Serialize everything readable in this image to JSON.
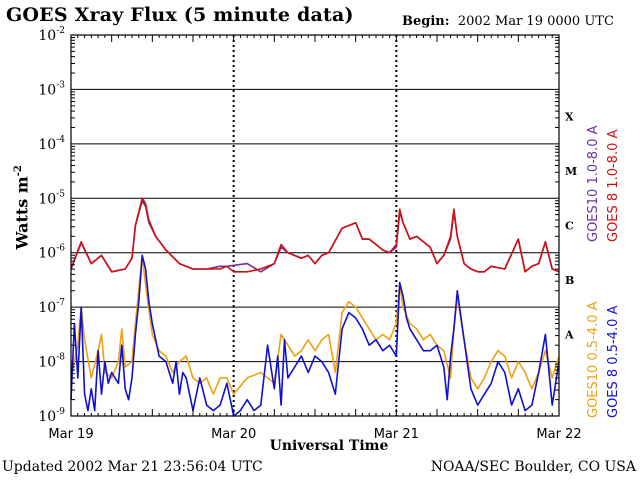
{
  "header": {
    "title": "GOES Xray Flux (5 minute data)",
    "begin_label": "Begin:",
    "begin_value": "2002 Mar 19 0000 UTC"
  },
  "footer": {
    "updated": "Updated 2002 Mar 21 23:56:04 UTC",
    "credit": "NOAA/SEC Boulder, CO USA"
  },
  "colors": {
    "goes10_long": "#7030a0",
    "goes8_long": "#d01010",
    "goes10_short": "#f0a010",
    "goes8_short": "#1010d0"
  },
  "chart_data": {
    "type": "line",
    "title": "GOES Xray Flux (5 minute data)",
    "xlabel": "Universal Time",
    "ylabel": "Watts m-2",
    "ylabel_main": "Watts m",
    "ylabel_sup": "-2",
    "y_scale": "log",
    "ylim": [
      1e-09,
      0.01
    ],
    "xlim": [
      0,
      72
    ],
    "x_unit": "hours since 2002 Mar 19 0000 UTC",
    "x_ticks": [
      {
        "x": 0,
        "label": "Mar 19"
      },
      {
        "x": 24,
        "label": "Mar 20"
      },
      {
        "x": 48,
        "label": "Mar 21"
      },
      {
        "x": 72,
        "label": "Mar 22"
      }
    ],
    "y_ticks": [
      {
        "exp": -2,
        "base": "10",
        "sup": "-2"
      },
      {
        "exp": -3,
        "base": "10",
        "sup": "-3"
      },
      {
        "exp": -4,
        "base": "10",
        "sup": "-4"
      },
      {
        "exp": -5,
        "base": "10",
        "sup": "-5"
      },
      {
        "exp": -6,
        "base": "10",
        "sup": "-6"
      },
      {
        "exp": -7,
        "base": "10",
        "sup": "-7"
      },
      {
        "exp": -8,
        "base": "10",
        "sup": "-8"
      },
      {
        "exp": -9,
        "base": "10",
        "sup": "-9"
      }
    ],
    "flare_classes": [
      {
        "label": "X",
        "exp": -3.5
      },
      {
        "label": "M",
        "exp": -4.5
      },
      {
        "label": "C",
        "exp": -5.5
      },
      {
        "label": "B",
        "exp": -6.5
      },
      {
        "label": "A",
        "exp": -7.5
      }
    ],
    "grid": "horizontal lines at each decade; dotted day separators",
    "legend_position": "right, vertical",
    "series": [
      {
        "name": "GOES10 1.0-8.0 A",
        "color": "#7030a0",
        "x": [
          0,
          1.5,
          3,
          4.5,
          6,
          8,
          9,
          9.5,
          10.5,
          11,
          11.5,
          12.5,
          14,
          16,
          18,
          20,
          22,
          23,
          26,
          28,
          30,
          31,
          32,
          34,
          35,
          36,
          37,
          38,
          40,
          42,
          43,
          44,
          45,
          46,
          47,
          48,
          48.5,
          49,
          50,
          51,
          52,
          53,
          54,
          55,
          56,
          56.5,
          57,
          58,
          59,
          60,
          61,
          62,
          64,
          66,
          67,
          68,
          69,
          70,
          71,
          72
        ],
        "y": [
          -6.3,
          -5.82,
          -6.2,
          -6.05,
          -6.35,
          -6.3,
          -6.1,
          -5.5,
          -5.05,
          -5.15,
          -5.45,
          -5.7,
          -5.95,
          -6.2,
          -6.3,
          -6.3,
          -6.25,
          -6.25,
          -6.2,
          -6.35,
          -6.2,
          -5.9,
          -6.0,
          -6.1,
          -6.05,
          -6.2,
          -6.05,
          -6.0,
          -5.55,
          -5.45,
          -5.75,
          -5.75,
          -5.85,
          -5.95,
          -6.0,
          -5.9,
          -5.25,
          -5.45,
          -5.75,
          -5.7,
          -5.8,
          -5.9,
          -6.2,
          -6.05,
          -5.75,
          -5.25,
          -5.7,
          -6.2,
          -6.3,
          -6.35,
          -6.35,
          -6.25,
          -6.3,
          -5.75,
          -6.35,
          -6.25,
          -6.2,
          -5.8,
          -6.3,
          -6.35
        ]
      },
      {
        "name": "GOES 8 1.0-8.0 A",
        "color": "#d01010",
        "x": [
          0,
          1.5,
          3,
          4.5,
          6,
          8,
          9,
          9.5,
          10.5,
          11,
          11.5,
          12.5,
          14,
          16,
          18,
          20,
          22,
          23,
          24,
          26,
          28,
          30,
          31,
          32,
          34,
          35,
          36,
          37,
          38,
          40,
          42,
          43,
          44,
          45,
          46,
          47,
          48,
          48.5,
          49,
          50,
          51,
          52,
          53,
          54,
          55,
          56,
          56.5,
          57,
          58,
          59,
          60,
          61,
          62,
          64,
          66,
          67,
          68,
          69,
          70,
          71,
          72
        ],
        "y": [
          -6.3,
          -5.8,
          -6.2,
          -6.05,
          -6.35,
          -6.3,
          -6.1,
          -5.5,
          -5.0,
          -5.1,
          -5.4,
          -5.7,
          -5.95,
          -6.2,
          -6.3,
          -6.3,
          -6.3,
          -6.25,
          -6.35,
          -6.35,
          -6.3,
          -6.2,
          -5.85,
          -6.0,
          -6.1,
          -6.05,
          -6.2,
          -6.05,
          -6.0,
          -5.55,
          -5.45,
          -5.75,
          -5.75,
          -5.85,
          -5.95,
          -6.0,
          -5.85,
          -5.2,
          -5.45,
          -5.75,
          -5.7,
          -5.8,
          -5.9,
          -6.2,
          -6.05,
          -5.7,
          -5.2,
          -5.7,
          -6.2,
          -6.3,
          -6.35,
          -6.35,
          -6.25,
          -6.3,
          -5.75,
          -6.35,
          -6.25,
          -6.2,
          -5.8,
          -6.3,
          -6.35
        ]
      },
      {
        "name": "GOES10 0.5-4.0 A",
        "color": "#f0a010",
        "x": [
          0,
          1,
          1.5,
          2,
          3,
          4,
          4.5,
          5,
          6,
          7,
          7.5,
          8,
          9,
          9.5,
          10.5,
          11,
          12,
          13,
          14,
          15,
          16,
          17,
          18,
          19,
          20,
          21,
          22,
          23,
          24,
          26,
          28,
          30,
          31,
          32,
          33,
          34,
          35,
          36,
          37,
          38,
          39,
          40,
          41,
          42,
          43,
          44,
          45,
          46,
          47,
          48,
          48.5,
          49,
          50,
          51,
          52,
          53,
          54,
          55,
          56,
          56.5,
          57,
          58,
          59,
          60,
          61,
          62,
          63,
          64,
          65,
          66,
          67,
          68,
          69,
          70,
          71,
          72
        ],
        "y": [
          -8.3,
          -7.7,
          -7.0,
          -7.6,
          -8.3,
          -7.8,
          -7.5,
          -8.2,
          -8.3,
          -8.0,
          -7.4,
          -8.1,
          -8.0,
          -7.3,
          -6.05,
          -6.6,
          -7.5,
          -7.8,
          -7.9,
          -8.2,
          -8.0,
          -7.9,
          -8.3,
          -8.4,
          -8.3,
          -8.6,
          -8.3,
          -8.3,
          -8.6,
          -8.3,
          -8.2,
          -8.4,
          -7.5,
          -7.7,
          -7.9,
          -7.8,
          -7.6,
          -7.8,
          -7.6,
          -7.5,
          -8.2,
          -7.1,
          -6.9,
          -7.0,
          -7.2,
          -7.4,
          -7.6,
          -7.5,
          -7.6,
          -7.3,
          -6.6,
          -7.0,
          -7.3,
          -7.4,
          -7.6,
          -7.5,
          -7.7,
          -7.8,
          -8.3,
          -7.4,
          -6.8,
          -7.6,
          -8.3,
          -8.5,
          -8.3,
          -8.0,
          -7.8,
          -7.9,
          -8.3,
          -8.0,
          -8.2,
          -8.5,
          -8.2,
          -7.8,
          -8.3,
          -7.9
        ]
      },
      {
        "name": "GOES 8 0.5-4.0 A",
        "color": "#1010d0",
        "x": [
          0,
          0.5,
          1,
          1.5,
          2,
          2.5,
          3,
          3.5,
          4,
          4.5,
          5,
          5.5,
          6,
          7,
          7.5,
          8,
          8.5,
          9,
          9.5,
          10,
          10.5,
          11,
          11.5,
          12,
          13,
          14,
          15,
          15.5,
          16,
          16.5,
          17,
          18,
          19,
          20,
          21,
          22,
          23,
          24,
          25,
          26,
          27,
          28,
          29,
          30,
          30.5,
          31,
          31.5,
          32,
          33,
          34,
          35,
          36,
          37,
          38,
          39,
          40,
          41,
          42,
          43,
          44,
          45,
          46,
          47,
          48,
          48.5,
          49,
          49.5,
          50,
          51,
          52,
          53,
          54,
          55,
          55.5,
          56,
          56.5,
          57,
          58,
          59,
          60,
          61,
          62,
          63,
          64,
          65,
          66,
          67,
          68,
          69,
          70,
          71,
          72
        ],
        "y": [
          -8.7,
          -7.3,
          -8.3,
          -7.0,
          -8.6,
          -8.9,
          -8.5,
          -8.9,
          -7.8,
          -8.6,
          -8.0,
          -8.4,
          -8.2,
          -8.4,
          -7.7,
          -8.5,
          -8.7,
          -8.3,
          -7.5,
          -6.9,
          -6.05,
          -6.3,
          -6.9,
          -7.3,
          -7.9,
          -8.0,
          -8.4,
          -8.0,
          -8.6,
          -8.2,
          -8.3,
          -8.9,
          -8.3,
          -8.8,
          -8.9,
          -8.8,
          -8.4,
          -9.0,
          -8.9,
          -8.7,
          -8.9,
          -8.8,
          -7.7,
          -8.5,
          -7.9,
          -8.8,
          -7.6,
          -8.3,
          -8.1,
          -7.9,
          -8.2,
          -7.9,
          -8.0,
          -8.2,
          -8.6,
          -7.4,
          -7.1,
          -7.2,
          -7.4,
          -7.7,
          -7.6,
          -7.8,
          -7.7,
          -7.9,
          -6.55,
          -6.8,
          -7.2,
          -7.4,
          -7.6,
          -7.8,
          -7.8,
          -7.7,
          -8.1,
          -8.7,
          -7.9,
          -7.4,
          -6.7,
          -7.6,
          -8.5,
          -8.8,
          -8.6,
          -8.4,
          -8.0,
          -8.2,
          -8.8,
          -8.5,
          -8.9,
          -8.8,
          -8.2,
          -7.5,
          -8.8,
          -8.0
        ]
      }
    ]
  }
}
